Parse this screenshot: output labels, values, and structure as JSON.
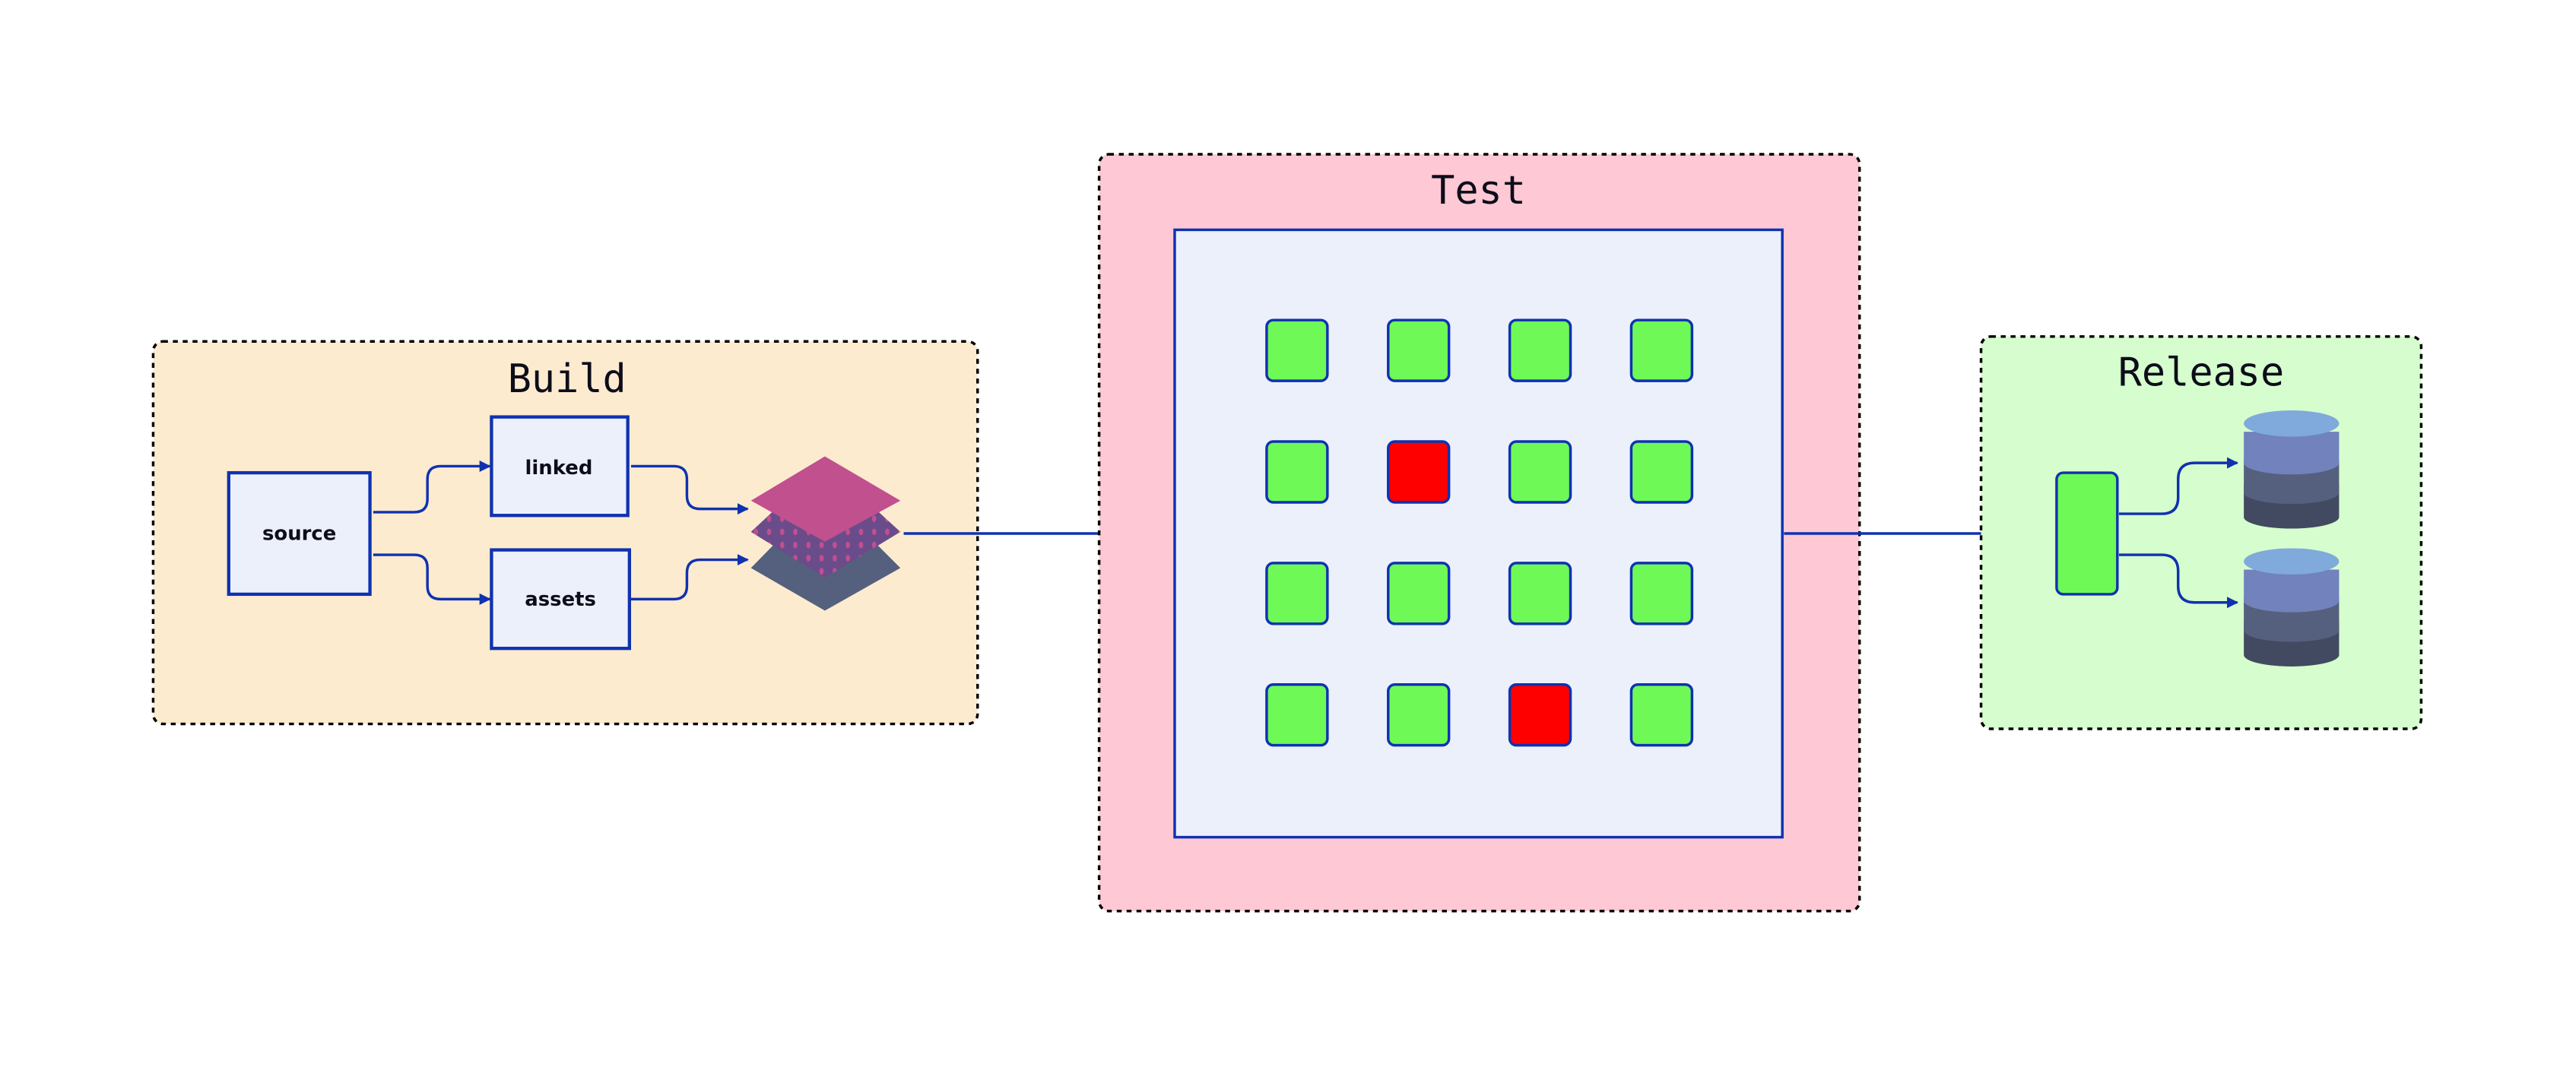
{
  "stages": {
    "build": {
      "title": "Build",
      "nodes": [
        "source",
        "linked",
        "assets"
      ],
      "fill": "#fdebcf"
    },
    "test": {
      "title": "Test",
      "fill": "#fec8d5",
      "grid": [
        [
          "pass",
          "pass",
          "pass",
          "pass"
        ],
        [
          "pass",
          "fail",
          "pass",
          "pass"
        ],
        [
          "pass",
          "pass",
          "pass",
          "pass"
        ],
        [
          "pass",
          "pass",
          "fail",
          "pass"
        ]
      ]
    },
    "release": {
      "title": "Release",
      "fill": "#d6fdcd"
    }
  },
  "colors": {
    "edge": "#0f32b0",
    "pass": "#6ef956",
    "fail": "#ff0000",
    "panel": "#ecf0fb"
  },
  "icons": [
    "layers-icon",
    "database-icon"
  ]
}
